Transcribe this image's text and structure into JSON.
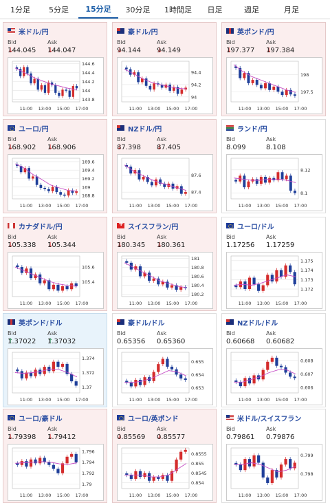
{
  "tabs": [
    {
      "label": "1分足",
      "active": false
    },
    {
      "label": "5分足",
      "active": false
    },
    {
      "label": "15分足",
      "active": true
    },
    {
      "label": "30分足",
      "active": false
    },
    {
      "label": "1時間足",
      "active": false
    },
    {
      "label": "日足",
      "active": false
    },
    {
      "label": "週足",
      "active": false
    },
    {
      "label": "月足",
      "active": false
    }
  ],
  "bid_label": "Bid",
  "ask_label": "Ask",
  "x_ticks": [
    "11:00",
    "13:00",
    "15:00",
    "17:00"
  ],
  "colors": {
    "up_candle": "#d42c2c",
    "down_candle": "#1f3f9a",
    "ma_line": "#c44ac4",
    "down_bg": "#fbeeee",
    "up_bg": "#e8f3fb"
  },
  "cards": [
    {
      "pair": "米ドル/円",
      "flag": "us",
      "trend": "down",
      "bid": "144.045",
      "ask": "144.047",
      "chart_data": {
        "type": "candlestick",
        "y_ticks": [
          "144.6",
          "144.4",
          "144.2",
          "144",
          "143.8"
        ],
        "ylim": [
          143.75,
          144.65
        ],
        "closes": [
          144.48,
          144.32,
          144.52,
          144.38,
          144.16,
          144.26,
          144.02,
          144.12,
          143.95,
          144.18,
          144.12,
          143.95,
          143.88,
          144.02,
          144.0,
          143.86,
          144.1,
          144.05
        ],
        "ma": [
          144.5,
          144.4,
          144.3,
          144.22,
          144.15,
          144.1,
          144.05,
          144.02
        ]
      }
    },
    {
      "pair": "豪ドル/円",
      "flag": "au",
      "trend": "down",
      "bid": "94.144",
      "ask": "94.149",
      "chart_data": {
        "type": "candlestick",
        "y_ticks": [
          "94.4",
          "94.2",
          "94"
        ],
        "ylim": [
          93.92,
          94.58
        ],
        "closes": [
          94.45,
          94.36,
          94.4,
          94.24,
          94.3,
          94.18,
          94.12,
          94.22,
          94.2,
          94.15,
          94.2,
          94.1,
          94.16,
          94.05,
          94.12,
          94.15
        ],
        "ma": [
          94.45,
          94.38,
          94.3,
          94.24,
          94.2,
          94.17,
          94.14,
          94.13
        ]
      }
    },
    {
      "pair": "英ポンド/円",
      "flag": "gb",
      "trend": "down",
      "bid": "197.377",
      "ask": "197.384",
      "chart_data": {
        "type": "candlestick",
        "y_ticks": [
          "198",
          "197.5"
        ],
        "ylim": [
          197.2,
          198.4
        ],
        "closes": [
          198.2,
          197.9,
          198.05,
          197.75,
          197.85,
          197.7,
          197.6,
          197.75,
          197.55,
          197.65,
          197.5,
          197.4,
          197.55,
          197.42,
          197.38
        ],
        "ma": [
          198.3,
          198.1,
          197.95,
          197.85,
          197.75,
          197.65,
          197.55,
          197.48
        ]
      }
    },
    {
      "pair": "ユーロ/円",
      "flag": "eu",
      "trend": "down",
      "bid": "168.902",
      "ask": "168.906",
      "chart_data": {
        "type": "candlestick",
        "y_ticks": [
          "169.6",
          "169.4",
          "169.2",
          "169",
          "168.8"
        ],
        "ylim": [
          168.72,
          169.68
        ],
        "closes": [
          169.5,
          169.35,
          169.45,
          169.2,
          169.25,
          169.05,
          168.98,
          168.95,
          168.9,
          169.0,
          168.88,
          168.82,
          168.8,
          168.92,
          168.86,
          168.9
        ],
        "ma": [
          169.55,
          169.45,
          169.3,
          169.18,
          169.05,
          168.98,
          168.92,
          168.9
        ]
      }
    },
    {
      "pair": "NZドル/円",
      "flag": "nz",
      "trend": "down",
      "bid": "87.398",
      "ask": "87.405",
      "chart_data": {
        "type": "candlestick",
        "y_ticks": [
          "87.6",
          "87.4"
        ],
        "ylim": [
          87.32,
          87.8
        ],
        "closes": [
          87.7,
          87.62,
          87.66,
          87.55,
          87.58,
          87.52,
          87.48,
          87.55,
          87.5,
          87.46,
          87.5,
          87.44,
          87.47,
          87.38,
          87.4
        ],
        "ma": [
          87.72,
          87.65,
          87.6,
          87.55,
          87.51,
          87.48,
          87.45,
          87.42
        ]
      }
    },
    {
      "pair": "ランド/円",
      "flag": "za",
      "trend": "flat",
      "bid": "8.099",
      "ask": "8.108",
      "chart_data": {
        "type": "candlestick",
        "y_ticks": [
          "8.12",
          "8.1"
        ],
        "ylim": [
          8.095,
          8.13
        ],
        "closes": [
          8.11,
          8.115,
          8.105,
          8.11,
          8.112,
          8.108,
          8.114,
          8.109,
          8.113,
          8.111,
          8.118,
          8.112,
          8.115,
          8.102,
          8.1
        ],
        "ma": [
          8.113,
          8.112,
          8.111,
          8.111,
          8.112,
          8.112,
          8.111,
          8.109
        ]
      }
    },
    {
      "pair": "カナダドル/円",
      "flag": "ca",
      "trend": "down",
      "bid": "105.338",
      "ask": "105.344",
      "chart_data": {
        "type": "candlestick",
        "y_ticks": [
          "105.6",
          "105.4"
        ],
        "ylim": [
          105.2,
          105.75
        ],
        "closes": [
          105.6,
          105.52,
          105.58,
          105.45,
          105.5,
          105.38,
          105.42,
          105.3,
          105.36,
          105.28,
          105.34,
          105.3,
          105.38,
          105.34
        ],
        "ma": [
          105.6,
          105.55,
          105.5,
          105.45,
          105.4,
          105.37,
          105.35,
          105.34
        ]
      }
    },
    {
      "pair": "スイスフラン/円",
      "flag": "ch",
      "trend": "down",
      "bid": "180.345",
      "ask": "180.361",
      "chart_data": {
        "type": "candlestick",
        "y_ticks": [
          "181",
          "180.8",
          "180.6",
          "180.4",
          "180.2"
        ],
        "ylim": [
          180.15,
          181.05
        ],
        "closes": [
          180.9,
          180.75,
          180.82,
          180.6,
          180.68,
          180.5,
          180.55,
          180.42,
          180.48,
          180.35,
          180.4,
          180.3,
          180.36,
          180.34
        ],
        "ma": [
          180.9,
          180.8,
          180.7,
          180.6,
          180.5,
          180.44,
          180.38,
          180.35
        ]
      }
    },
    {
      "pair": "ユーロ/ドル",
      "flag": "eu",
      "trend": "flat",
      "bid": "1.17256",
      "ask": "1.17259",
      "chart_data": {
        "type": "candlestick",
        "y_ticks": [
          "1.175",
          "1.174",
          "1.173",
          "1.172"
        ],
        "ylim": [
          1.1712,
          1.1755
        ],
        "closes": [
          1.1722,
          1.1728,
          1.172,
          1.1732,
          1.1725,
          1.1718,
          1.1724,
          1.1735,
          1.1728,
          1.174,
          1.1733,
          1.1745,
          1.1738,
          1.1725
        ],
        "ma": [
          1.1724,
          1.1725,
          1.1724,
          1.1726,
          1.1729,
          1.1732,
          1.1735,
          1.1733
        ]
      }
    },
    {
      "pair": "英ポンド/ドル",
      "flag": "gb",
      "trend": "up",
      "bid": "1.37022",
      "ask": "1.37032",
      "chart_data": {
        "type": "candlestick",
        "y_ticks": [
          "1.374",
          "1.372",
          "1.37"
        ],
        "ylim": [
          1.3692,
          1.3748
        ],
        "closes": [
          1.3722,
          1.3712,
          1.372,
          1.3715,
          1.3724,
          1.3718,
          1.3728,
          1.3722,
          1.3735,
          1.3728,
          1.3732,
          1.3718,
          1.3708,
          1.3702
        ],
        "ma": [
          1.372,
          1.3719,
          1.372,
          1.3722,
          1.3725,
          1.3724,
          1.372,
          1.3714
        ]
      }
    },
    {
      "pair": "豪ドル/ドル",
      "flag": "au",
      "trend": "flat",
      "bid": "0.65356",
      "ask": "0.65360",
      "chart_data": {
        "type": "candlestick",
        "y_ticks": [
          "0.655",
          "0.654",
          "0.653"
        ],
        "ylim": [
          0.6526,
          0.6557
        ],
        "closes": [
          0.6534,
          0.6531,
          0.6536,
          0.6532,
          0.6538,
          0.6535,
          0.6542,
          0.6548,
          0.6552,
          0.6546,
          0.6544,
          0.654,
          0.6537,
          0.6536
        ],
        "ma": [
          0.6534,
          0.6534,
          0.6535,
          0.6537,
          0.654,
          0.6543,
          0.6542,
          0.6539
        ]
      }
    },
    {
      "pair": "NZドル/ドル",
      "flag": "nz",
      "trend": "flat",
      "bid": "0.60668",
      "ask": "0.60682",
      "chart_data": {
        "type": "candlestick",
        "y_ticks": [
          "0.608",
          "0.607",
          "0.606"
        ],
        "ylim": [
          0.6056,
          0.6086
        ],
        "closes": [
          0.6064,
          0.6061,
          0.6067,
          0.6063,
          0.6069,
          0.6066,
          0.6073,
          0.6079,
          0.6082,
          0.6076,
          0.6075,
          0.6071,
          0.6068,
          0.6067
        ],
        "ma": [
          0.6064,
          0.6064,
          0.6066,
          0.6068,
          0.6071,
          0.6073,
          0.6073,
          0.607
        ]
      }
    },
    {
      "pair": "ユーロ/豪ドル",
      "flag": "eu",
      "trend": "down",
      "bid": "1.79398",
      "ask": "1.79412",
      "chart_data": {
        "type": "candlestick",
        "y_ticks": [
          "1.796",
          "1.794",
          "1.792",
          "1.79"
        ],
        "ylim": [
          1.7892,
          1.7966
        ],
        "closes": [
          1.7935,
          1.7942,
          1.7932,
          1.7945,
          1.7938,
          1.7948,
          1.794,
          1.7935,
          1.7928,
          1.792,
          1.7938,
          1.795,
          1.7955,
          1.794
        ],
        "ma": [
          1.7938,
          1.7939,
          1.794,
          1.7941,
          1.794,
          1.7937,
          1.7936,
          1.7939
        ]
      }
    },
    {
      "pair": "ユーロ/英ポンド",
      "flag": "eu",
      "trend": "down",
      "bid": "0.85569",
      "ask": "0.85577",
      "chart_data": {
        "type": "candlestick",
        "y_ticks": [
          "0.8555",
          "0.855",
          "0.8545",
          "0.854"
        ],
        "ylim": [
          0.8537,
          0.8558
        ],
        "closes": [
          0.8544,
          0.8542,
          0.8546,
          0.8543,
          0.8545,
          0.8541,
          0.8543,
          0.8542,
          0.8544,
          0.8541,
          0.8546,
          0.8552,
          0.8556,
          0.8557
        ],
        "ma": [
          0.8544,
          0.8544,
          0.8544,
          0.8543,
          0.8543,
          0.8544,
          0.8547,
          0.855
        ]
      }
    },
    {
      "pair": "米ドル/スイスフラン",
      "flag": "us",
      "trend": "flat",
      "bid": "0.79861",
      "ask": "0.79876",
      "chart_data": {
        "type": "candlestick",
        "y_ticks": [
          "0.799",
          "0.798"
        ],
        "ylim": [
          0.7972,
          0.7994
        ],
        "closes": [
          0.7985,
          0.7982,
          0.7988,
          0.7984,
          0.799,
          0.7986,
          0.7978,
          0.7975,
          0.7982,
          0.7978,
          0.7985,
          0.7988,
          0.7983,
          0.7986
        ],
        "ma": [
          0.7985,
          0.7985,
          0.7986,
          0.7985,
          0.7983,
          0.7981,
          0.7982,
          0.7984
        ]
      }
    }
  ]
}
